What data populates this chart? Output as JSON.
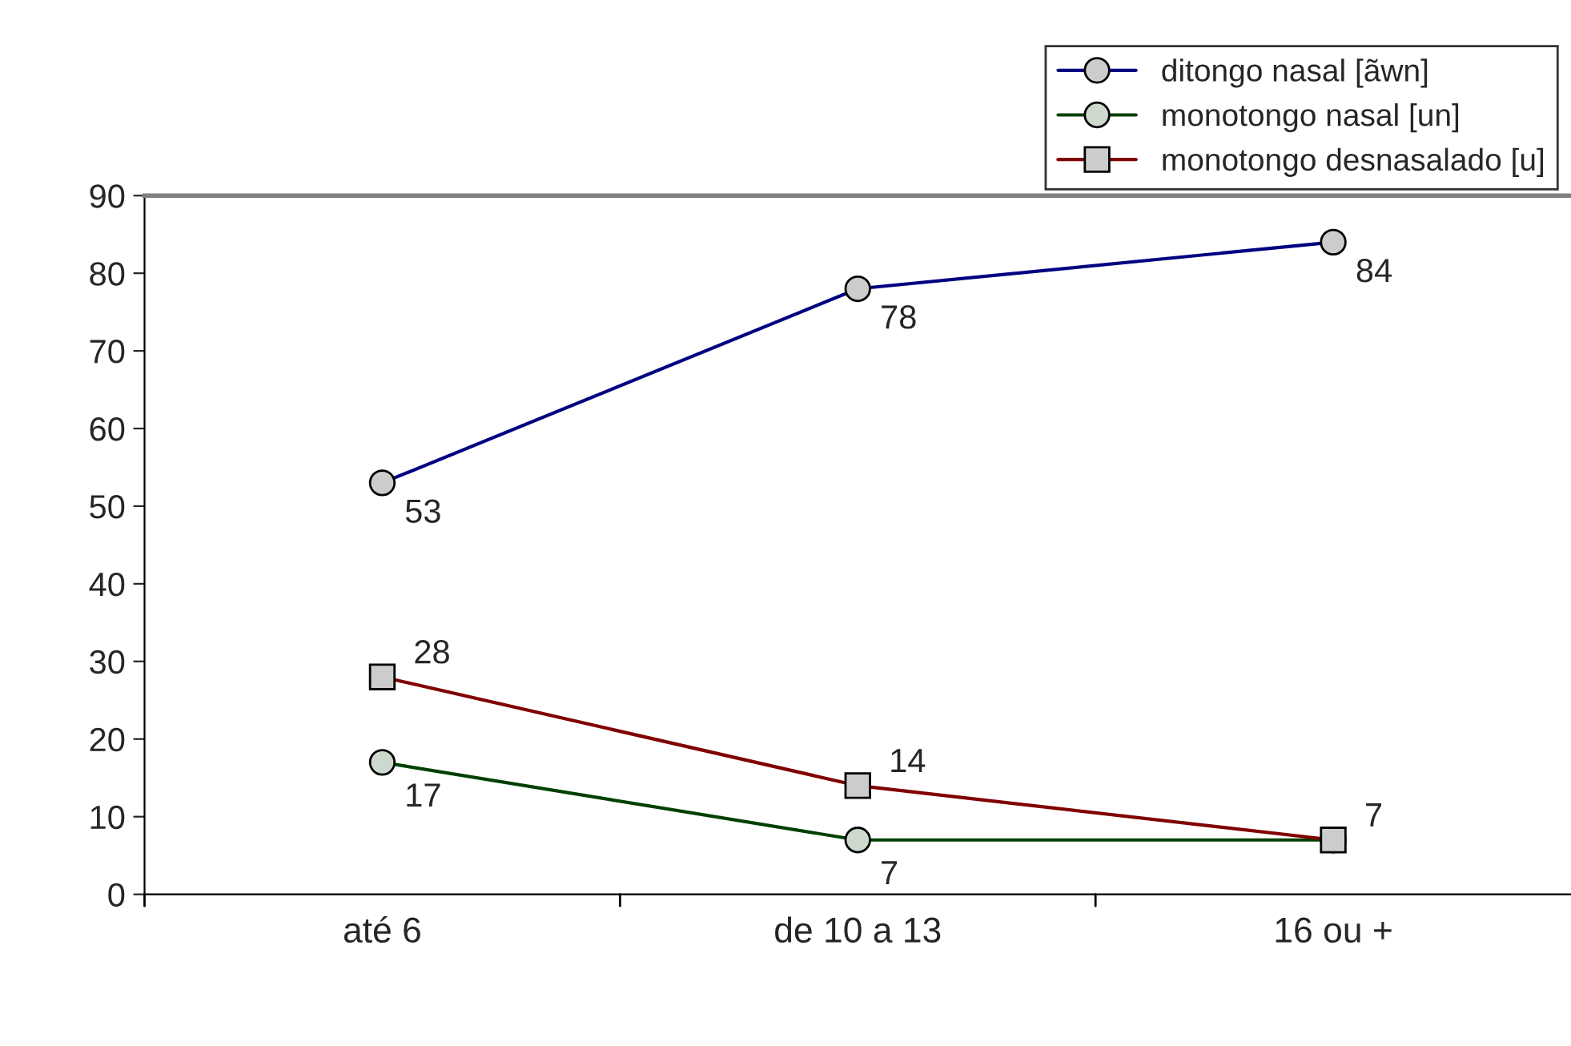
{
  "chart_data": {
    "type": "line",
    "categories": [
      "até 6",
      "de 10 a 13",
      "16 ou +"
    ],
    "ylim": [
      0,
      90
    ],
    "yticks": [
      0,
      10,
      20,
      30,
      40,
      50,
      60,
      70,
      80,
      90
    ],
    "grid": false,
    "legend": "top right",
    "line_style": "solid",
    "series": [
      {
        "name": "ditongo nasal [ãwn]",
        "color": "#000080",
        "marker": "circle",
        "values": [
          53,
          78,
          84
        ],
        "value_labels": [
          "53",
          "78",
          "84"
        ]
      },
      {
        "name": "monotongo nasal [un]",
        "color": "#004000",
        "marker": "circle",
        "values": [
          17,
          7,
          7
        ],
        "value_labels": [
          "17",
          "7",
          null
        ]
      },
      {
        "name": "monotongo desnasalado [u]",
        "color": "#800000",
        "marker": "square",
        "values": [
          28,
          14,
          7
        ],
        "value_labels": [
          "28",
          "14",
          "7"
        ]
      }
    ]
  }
}
